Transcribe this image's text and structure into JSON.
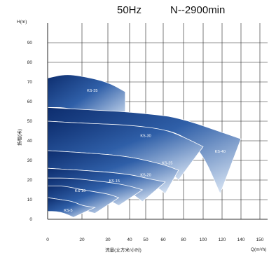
{
  "header": {
    "frequency": "50Hz",
    "speed": "N--2900min"
  },
  "chart_data": {
    "type": "area",
    "title": "50Hz    N--2900min",
    "ylabel": "扬程(米)",
    "ylabel_unit": "H(m)",
    "xlabel": "流量(立方米/小时)",
    "xlabel_unit": "Q(m³/h)",
    "xlim": [
      0,
      150
    ],
    "ylim": [
      0,
      100
    ],
    "x_ticks": [
      0,
      20,
      30,
      40,
      50,
      60,
      80,
      100,
      120,
      140,
      150
    ],
    "y_ticks": [
      0,
      10,
      20,
      30,
      40,
      50,
      60,
      70,
      80,
      90
    ],
    "grid": true,
    "regions": [
      {
        "name": "KS-35",
        "label_xy": [
          24,
          65
        ],
        "top": [
          [
            0,
            72
          ],
          [
            10,
            74
          ],
          [
            20,
            73
          ],
          [
            30,
            70
          ],
          [
            38,
            65
          ]
        ],
        "bottom": [
          [
            0,
            57
          ],
          [
            10,
            57
          ],
          [
            20,
            55
          ],
          [
            30,
            52
          ],
          [
            38,
            47
          ]
        ]
      },
      {
        "name": "KS-40",
        "label_xy": [
          118,
          34
        ],
        "top": [
          [
            0,
            57
          ],
          [
            20,
            56
          ],
          [
            50,
            54
          ],
          [
            80,
            51
          ],
          [
            110,
            46
          ],
          [
            140,
            41
          ]
        ],
        "bottom": [
          [
            0,
            50
          ],
          [
            20,
            49
          ],
          [
            50,
            47
          ],
          [
            80,
            43
          ],
          [
            100,
            33
          ],
          [
            118,
            13
          ]
        ]
      },
      {
        "name": "KS-30",
        "label_xy": [
          50,
          42
        ],
        "top": [
          [
            0,
            50
          ],
          [
            20,
            49
          ],
          [
            40,
            48
          ],
          [
            60,
            46
          ],
          [
            80,
            42
          ],
          [
            100,
            37
          ]
        ],
        "bottom": [
          [
            0,
            35
          ],
          [
            20,
            34
          ],
          [
            40,
            32
          ],
          [
            60,
            28
          ],
          [
            75,
            20
          ]
        ]
      },
      {
        "name": "KS-25",
        "label_xy": [
          64,
          28
        ],
        "top": [
          [
            0,
            35
          ],
          [
            20,
            34
          ],
          [
            40,
            32
          ],
          [
            60,
            28
          ],
          [
            75,
            25
          ]
        ],
        "bottom": [
          [
            0,
            26
          ],
          [
            20,
            25
          ],
          [
            40,
            23
          ],
          [
            55,
            17
          ],
          [
            62,
            13
          ]
        ]
      },
      {
        "name": "KS-20",
        "label_xy": [
          50,
          22
        ],
        "top": [
          [
            0,
            26
          ],
          [
            20,
            25
          ],
          [
            40,
            23
          ],
          [
            55,
            20
          ],
          [
            62,
            19
          ]
        ],
        "bottom": [
          [
            0,
            21
          ],
          [
            15,
            20
          ],
          [
            30,
            18
          ],
          [
            40,
            14
          ],
          [
            48,
            9
          ]
        ]
      },
      {
        "name": "KS-15",
        "label_xy": [
          33,
          19
        ],
        "top": [
          [
            0,
            21
          ],
          [
            15,
            21
          ],
          [
            30,
            19
          ],
          [
            40,
            17
          ],
          [
            48,
            15
          ]
        ],
        "bottom": [
          [
            0,
            17
          ],
          [
            10,
            16
          ],
          [
            20,
            14
          ],
          [
            30,
            10
          ],
          [
            35,
            7
          ]
        ]
      },
      {
        "name": "KS-10",
        "label_xy": [
          19,
          14
        ],
        "top": [
          [
            0,
            17
          ],
          [
            10,
            17
          ],
          [
            20,
            15
          ],
          [
            30,
            13
          ],
          [
            35,
            11
          ]
        ],
        "bottom": [
          [
            0,
            11
          ],
          [
            8,
            10
          ],
          [
            15,
            9
          ],
          [
            20,
            5
          ],
          [
            25,
            3
          ]
        ]
      },
      {
        "name": "KS-5",
        "label_xy": [
          12,
          4
        ],
        "top": [
          [
            0,
            11
          ],
          [
            8,
            10
          ],
          [
            15,
            9
          ],
          [
            20,
            7
          ],
          [
            25,
            6
          ]
        ],
        "bottom": [
          [
            0,
            4
          ],
          [
            5,
            4
          ],
          [
            10,
            3
          ],
          [
            15,
            1
          ]
        ]
      }
    ]
  }
}
